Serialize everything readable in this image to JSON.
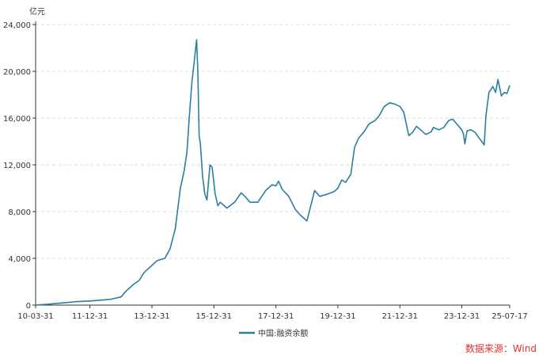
{
  "chart_data": {
    "type": "line",
    "y_unit": "亿元",
    "ylim": [
      0,
      24000
    ],
    "y_ticks": [
      "0",
      "4,000",
      "8,000",
      "12,000",
      "16,000",
      "20,000",
      "24,000"
    ],
    "y_tick_values": [
      0,
      4000,
      8000,
      12000,
      16000,
      20000,
      24000
    ],
    "xlim": [
      "2010-03-31",
      "2025-07-17"
    ],
    "x_ticks": [
      "10-03-31",
      "11-12-31",
      "13-12-31",
      "15-12-31",
      "17-12-31",
      "19-12-31",
      "21-12-31",
      "23-12-31",
      "25-07-17"
    ],
    "x_tick_dates": [
      "2010-03-31",
      "2011-12-31",
      "2013-12-31",
      "2015-12-31",
      "2017-12-31",
      "2019-12-31",
      "2021-12-31",
      "2023-12-31",
      "2025-07-17"
    ],
    "grid": "horizontal-dashed",
    "legend_position": "bottom-center",
    "series": [
      {
        "name": "中国:融资余额",
        "color": "#2b7ea1",
        "points": [
          [
            "2010-03-31",
            10
          ],
          [
            "2010-09-01",
            80
          ],
          [
            "2011-03-01",
            200
          ],
          [
            "2011-08-01",
            300
          ],
          [
            "2011-12-31",
            350
          ],
          [
            "2012-04-01",
            400
          ],
          [
            "2012-09-01",
            500
          ],
          [
            "2012-12-31",
            700
          ],
          [
            "2013-03-01",
            1200
          ],
          [
            "2013-06-01",
            1800
          ],
          [
            "2013-08-01",
            2100
          ],
          [
            "2013-10-01",
            2800
          ],
          [
            "2013-12-31",
            3400
          ],
          [
            "2014-03-01",
            3800
          ],
          [
            "2014-06-01",
            4000
          ],
          [
            "2014-08-01",
            4800
          ],
          [
            "2014-10-01",
            6500
          ],
          [
            "2014-12-01",
            10000
          ],
          [
            "2015-01-15",
            11500
          ],
          [
            "2015-02-15",
            13000
          ],
          [
            "2015-03-15",
            16000
          ],
          [
            "2015-04-15",
            19000
          ],
          [
            "2015-06-10",
            22700
          ],
          [
            "2015-06-25",
            20000
          ],
          [
            "2015-07-10",
            14500
          ],
          [
            "2015-07-25",
            13800
          ],
          [
            "2015-08-20",
            11000
          ],
          [
            "2015-09-15",
            9500
          ],
          [
            "2015-10-10",
            9000
          ],
          [
            "2015-11-15",
            12000
          ],
          [
            "2015-12-10",
            11800
          ],
          [
            "2016-01-15",
            9500
          ],
          [
            "2016-02-15",
            8500
          ],
          [
            "2016-03-15",
            8800
          ],
          [
            "2016-06-01",
            8300
          ],
          [
            "2016-09-01",
            8800
          ],
          [
            "2016-11-15",
            9600
          ],
          [
            "2016-12-31",
            9300
          ],
          [
            "2017-03-01",
            8800
          ],
          [
            "2017-06-01",
            8800
          ],
          [
            "2017-09-01",
            9800
          ],
          [
            "2017-11-15",
            10300
          ],
          [
            "2017-12-31",
            10200
          ],
          [
            "2018-01-31",
            10600
          ],
          [
            "2018-03-15",
            9900
          ],
          [
            "2018-06-01",
            9300
          ],
          [
            "2018-08-15",
            8200
          ],
          [
            "2018-10-01",
            7800
          ],
          [
            "2018-11-15",
            7500
          ],
          [
            "2018-12-31",
            7200
          ],
          [
            "2019-02-15",
            8500
          ],
          [
            "2019-04-01",
            9800
          ],
          [
            "2019-06-01",
            9300
          ],
          [
            "2019-09-01",
            9500
          ],
          [
            "2019-11-15",
            9700
          ],
          [
            "2019-12-31",
            10000
          ],
          [
            "2020-02-15",
            10700
          ],
          [
            "2020-04-01",
            10500
          ],
          [
            "2020-06-01",
            11200
          ],
          [
            "2020-07-15",
            13500
          ],
          [
            "2020-09-01",
            14300
          ],
          [
            "2020-11-01",
            14800
          ],
          [
            "2021-01-01",
            15500
          ],
          [
            "2021-03-15",
            15800
          ],
          [
            "2021-05-01",
            16200
          ],
          [
            "2021-07-01",
            17000
          ],
          [
            "2021-09-01",
            17300
          ],
          [
            "2021-11-01",
            17200
          ],
          [
            "2021-12-31",
            17000
          ],
          [
            "2022-02-15",
            16500
          ],
          [
            "2022-04-15",
            14500
          ],
          [
            "2022-06-01",
            14800
          ],
          [
            "2022-07-15",
            15300
          ],
          [
            "2022-09-01",
            15000
          ],
          [
            "2022-11-01",
            14600
          ],
          [
            "2022-12-31",
            14800
          ],
          [
            "2023-02-01",
            15200
          ],
          [
            "2023-04-01",
            15000
          ],
          [
            "2023-06-01",
            15200
          ],
          [
            "2023-08-01",
            15800
          ],
          [
            "2023-09-15",
            15900
          ],
          [
            "2023-11-01",
            15500
          ],
          [
            "2023-12-31",
            15000
          ],
          [
            "2024-01-20",
            14600
          ],
          [
            "2024-02-05",
            13800
          ],
          [
            "2024-03-01",
            14900
          ],
          [
            "2024-04-15",
            15000
          ],
          [
            "2024-06-01",
            14800
          ],
          [
            "2024-08-01",
            14200
          ],
          [
            "2024-09-20",
            13700
          ],
          [
            "2024-10-10",
            16200
          ],
          [
            "2024-11-15",
            18200
          ],
          [
            "2024-12-31",
            18700
          ],
          [
            "2025-02-01",
            18200
          ],
          [
            "2025-03-01",
            19300
          ],
          [
            "2025-04-10",
            17900
          ],
          [
            "2025-05-15",
            18200
          ],
          [
            "2025-06-15",
            18100
          ],
          [
            "2025-07-17",
            18800
          ]
        ]
      }
    ]
  },
  "source_note": "数据来源：Wind"
}
